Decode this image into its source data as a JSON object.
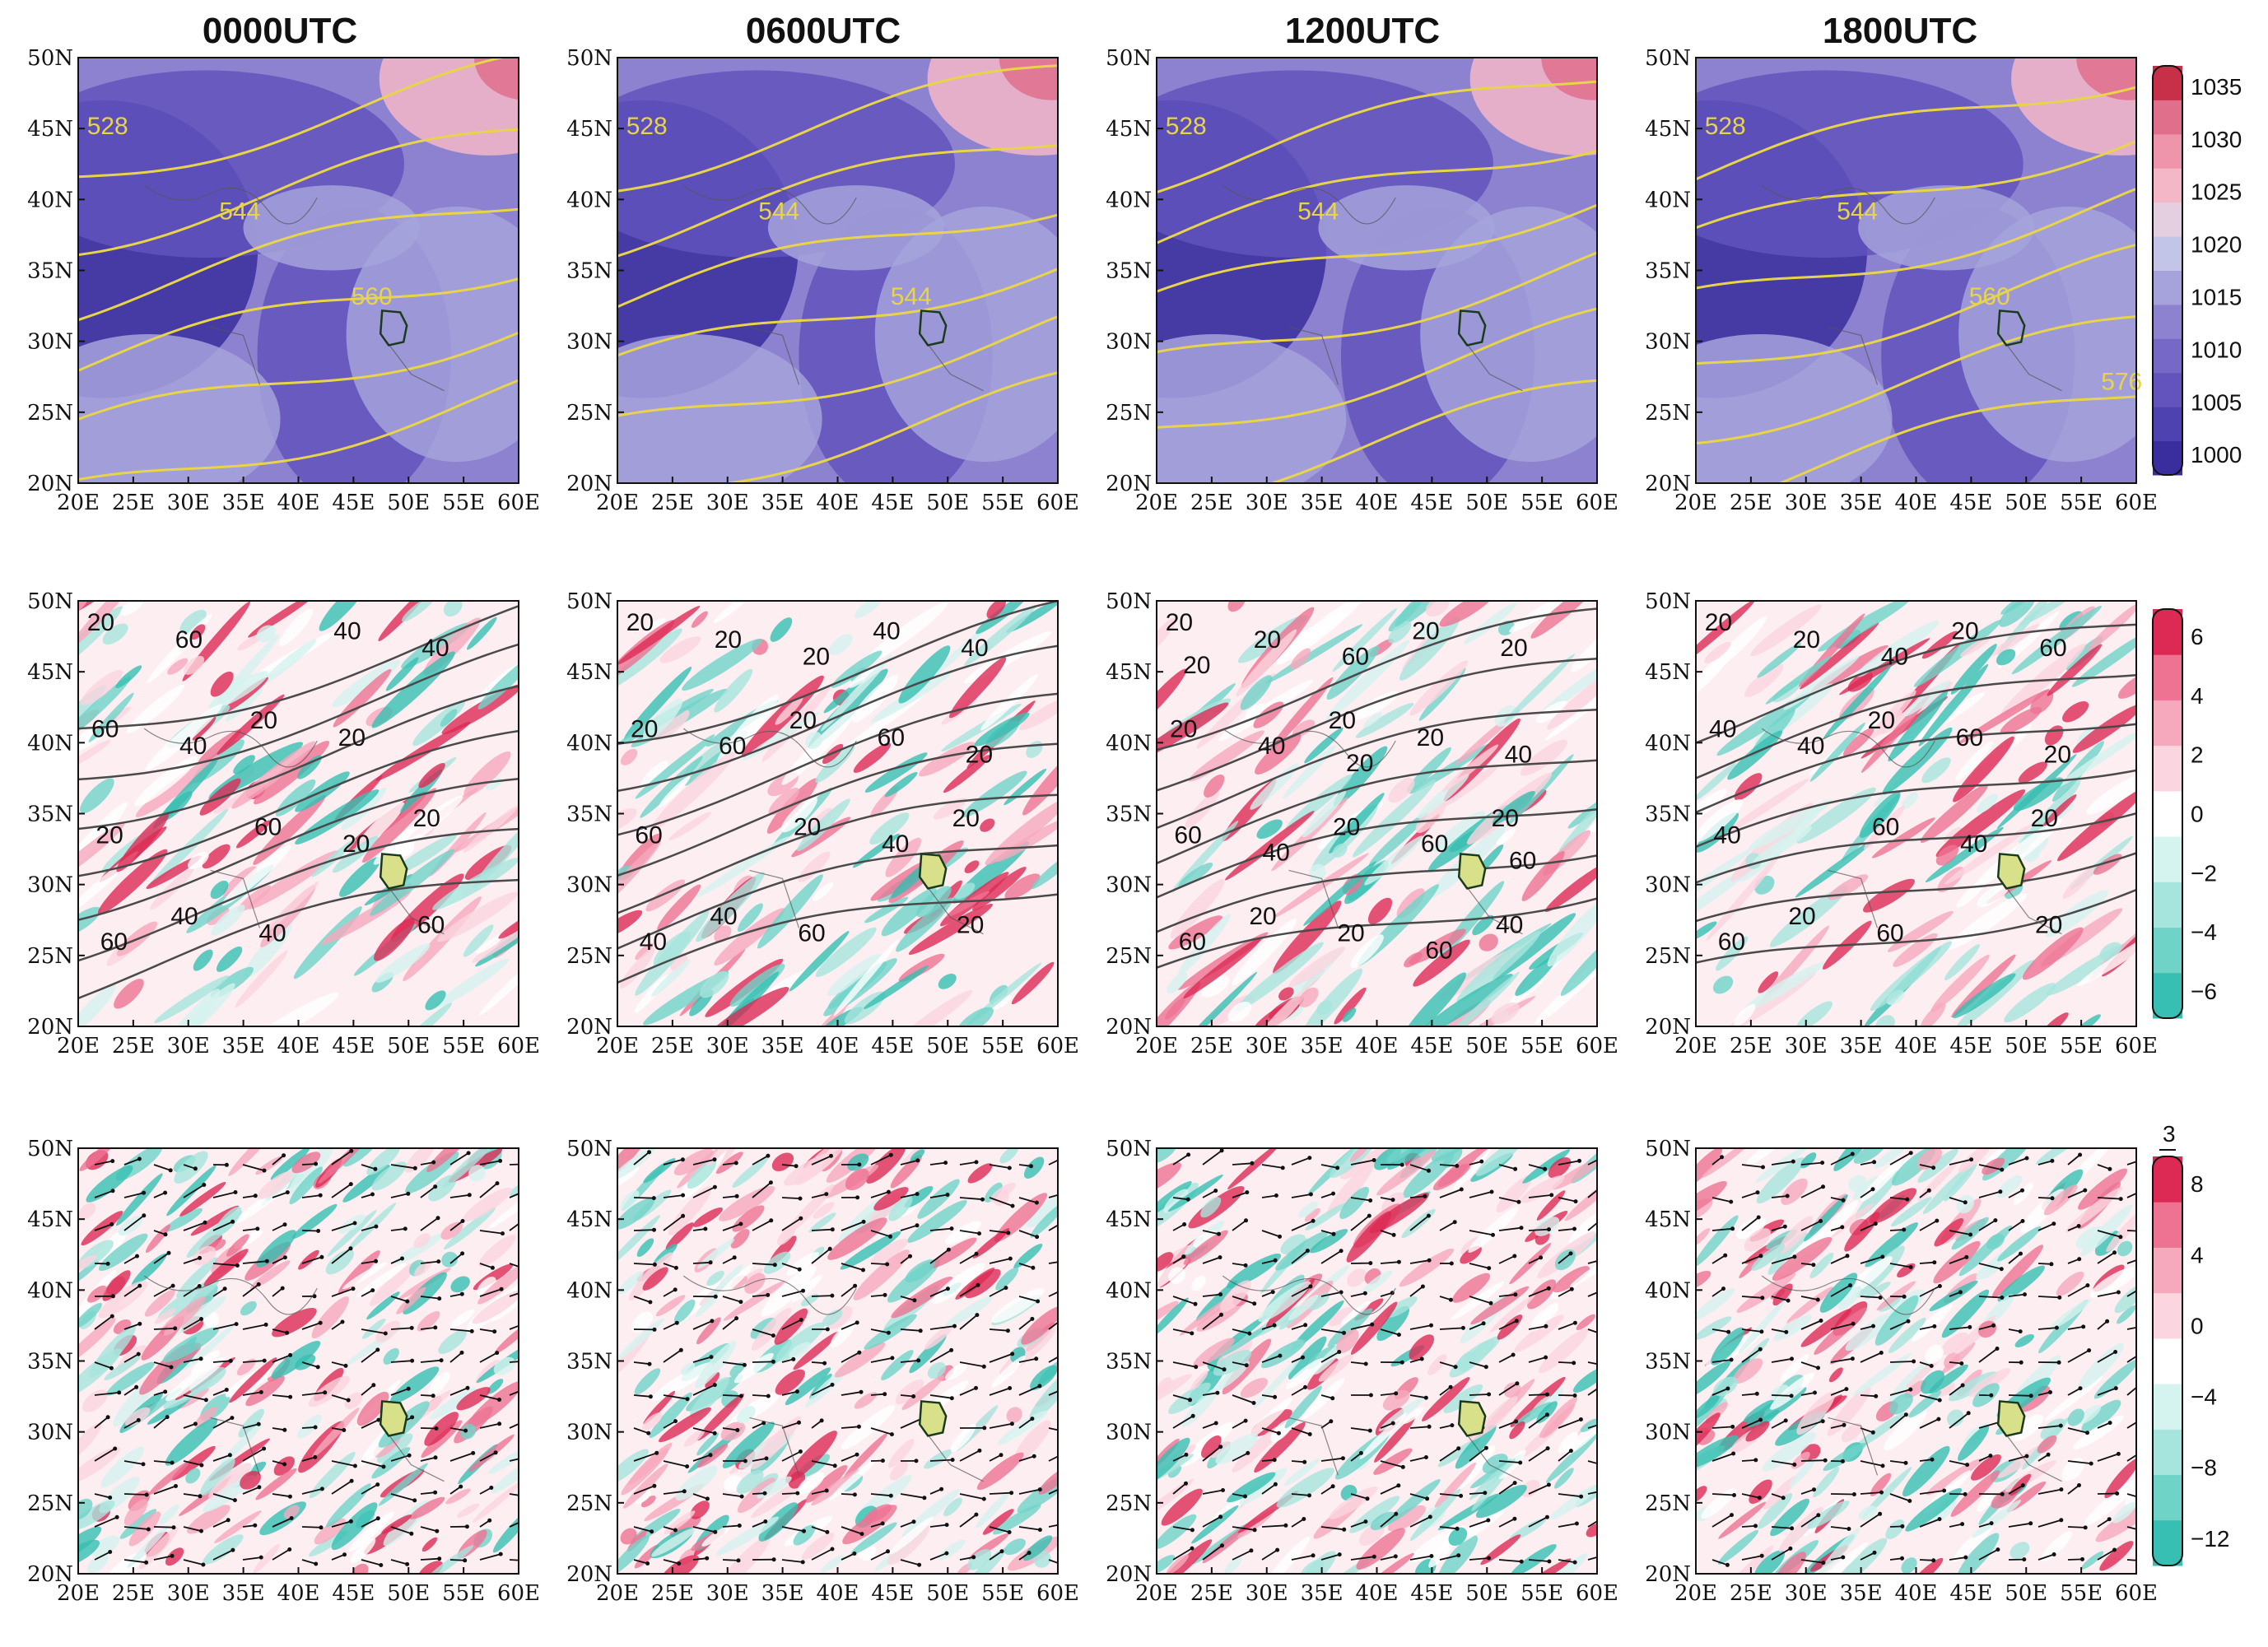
{
  "columns": [
    "0000UTC",
    "0600UTC",
    "1200UTC",
    "1800UTC"
  ],
  "axes": {
    "lon_labels": [
      "20E",
      "25E",
      "30E",
      "35E",
      "40E",
      "45E",
      "50E",
      "55E",
      "60E"
    ],
    "lat_labels": [
      "50N",
      "45N",
      "40N",
      "35N",
      "30N",
      "25N",
      "20N"
    ]
  },
  "rows": [
    {
      "id": "slp",
      "colorbar_ticks": [
        "1035",
        "1030",
        "1025",
        "1020",
        "1015",
        "1010",
        "1005",
        "1000"
      ],
      "colormap": [
        "#3a2e9e",
        "#4e42b0",
        "#6254bc",
        "#7668c6",
        "#8d82cf",
        "#a6a3dc",
        "#c2c5e7",
        "#e4cfe0",
        "#f4b7c8",
        "#ee94ab",
        "#e06f8c",
        "#c8304a"
      ],
      "contour_color": "#e8d44a",
      "panels": [
        {
          "labels": [
            "528",
            "544",
            "560"
          ]
        },
        {
          "labels": [
            "528",
            "544",
            "544"
          ]
        },
        {
          "labels": [
            "528",
            "544"
          ]
        },
        {
          "labels": [
            "528",
            "544",
            "560",
            "576"
          ]
        }
      ]
    },
    {
      "id": "jet",
      "colorbar_ticks": [
        "6",
        "4",
        "2",
        "0",
        "−2",
        "−4",
        "−6"
      ],
      "colormap": [
        "#36bfb2",
        "#6fd3c8",
        "#a6e5dd",
        "#d5f3ef",
        "#ffffff",
        "#fbd5df",
        "#f6a9bd",
        "#ee7393",
        "#dc2a55"
      ],
      "contour_color": "#4a4a4a",
      "panels": [
        {
          "labels": [
            "20",
            "20",
            "20",
            "40",
            "40",
            "60",
            "60",
            "60",
            "60",
            "20",
            "20",
            "40",
            "40",
            "40",
            "20",
            "60"
          ]
        },
        {
          "labels": [
            "20",
            "20",
            "20",
            "40",
            "40",
            "20",
            "20",
            "20",
            "20",
            "60",
            "60",
            "60",
            "40",
            "60",
            "40",
            "40",
            "20",
            "20"
          ]
        },
        {
          "labels": [
            "20",
            "20",
            "20",
            "20",
            "20",
            "20",
            "20",
            "40",
            "20",
            "20",
            "60",
            "20",
            "20",
            "40",
            "60",
            "60",
            "60",
            "40",
            "40",
            "60",
            "20",
            "20",
            "60"
          ]
        },
        {
          "labels": [
            "20",
            "20",
            "20",
            "20",
            "20",
            "40",
            "60",
            "20",
            "20",
            "60",
            "40",
            "60",
            "60",
            "40",
            "40",
            "60",
            "40",
            "20"
          ]
        }
      ]
    },
    {
      "id": "wind",
      "colorbar_ticks": [
        "8",
        "4",
        "0",
        "−4",
        "−8",
        "−12"
      ],
      "colorbar_ref": "3",
      "colormap": [
        "#36bfb2",
        "#6fd3c8",
        "#a6e5dd",
        "#d5f3ef",
        "#ffffff",
        "#fbd5df",
        "#f6a9bd",
        "#ee7393",
        "#dc2a55"
      ],
      "panels": [
        {},
        {},
        {},
        {}
      ]
    }
  ]
}
